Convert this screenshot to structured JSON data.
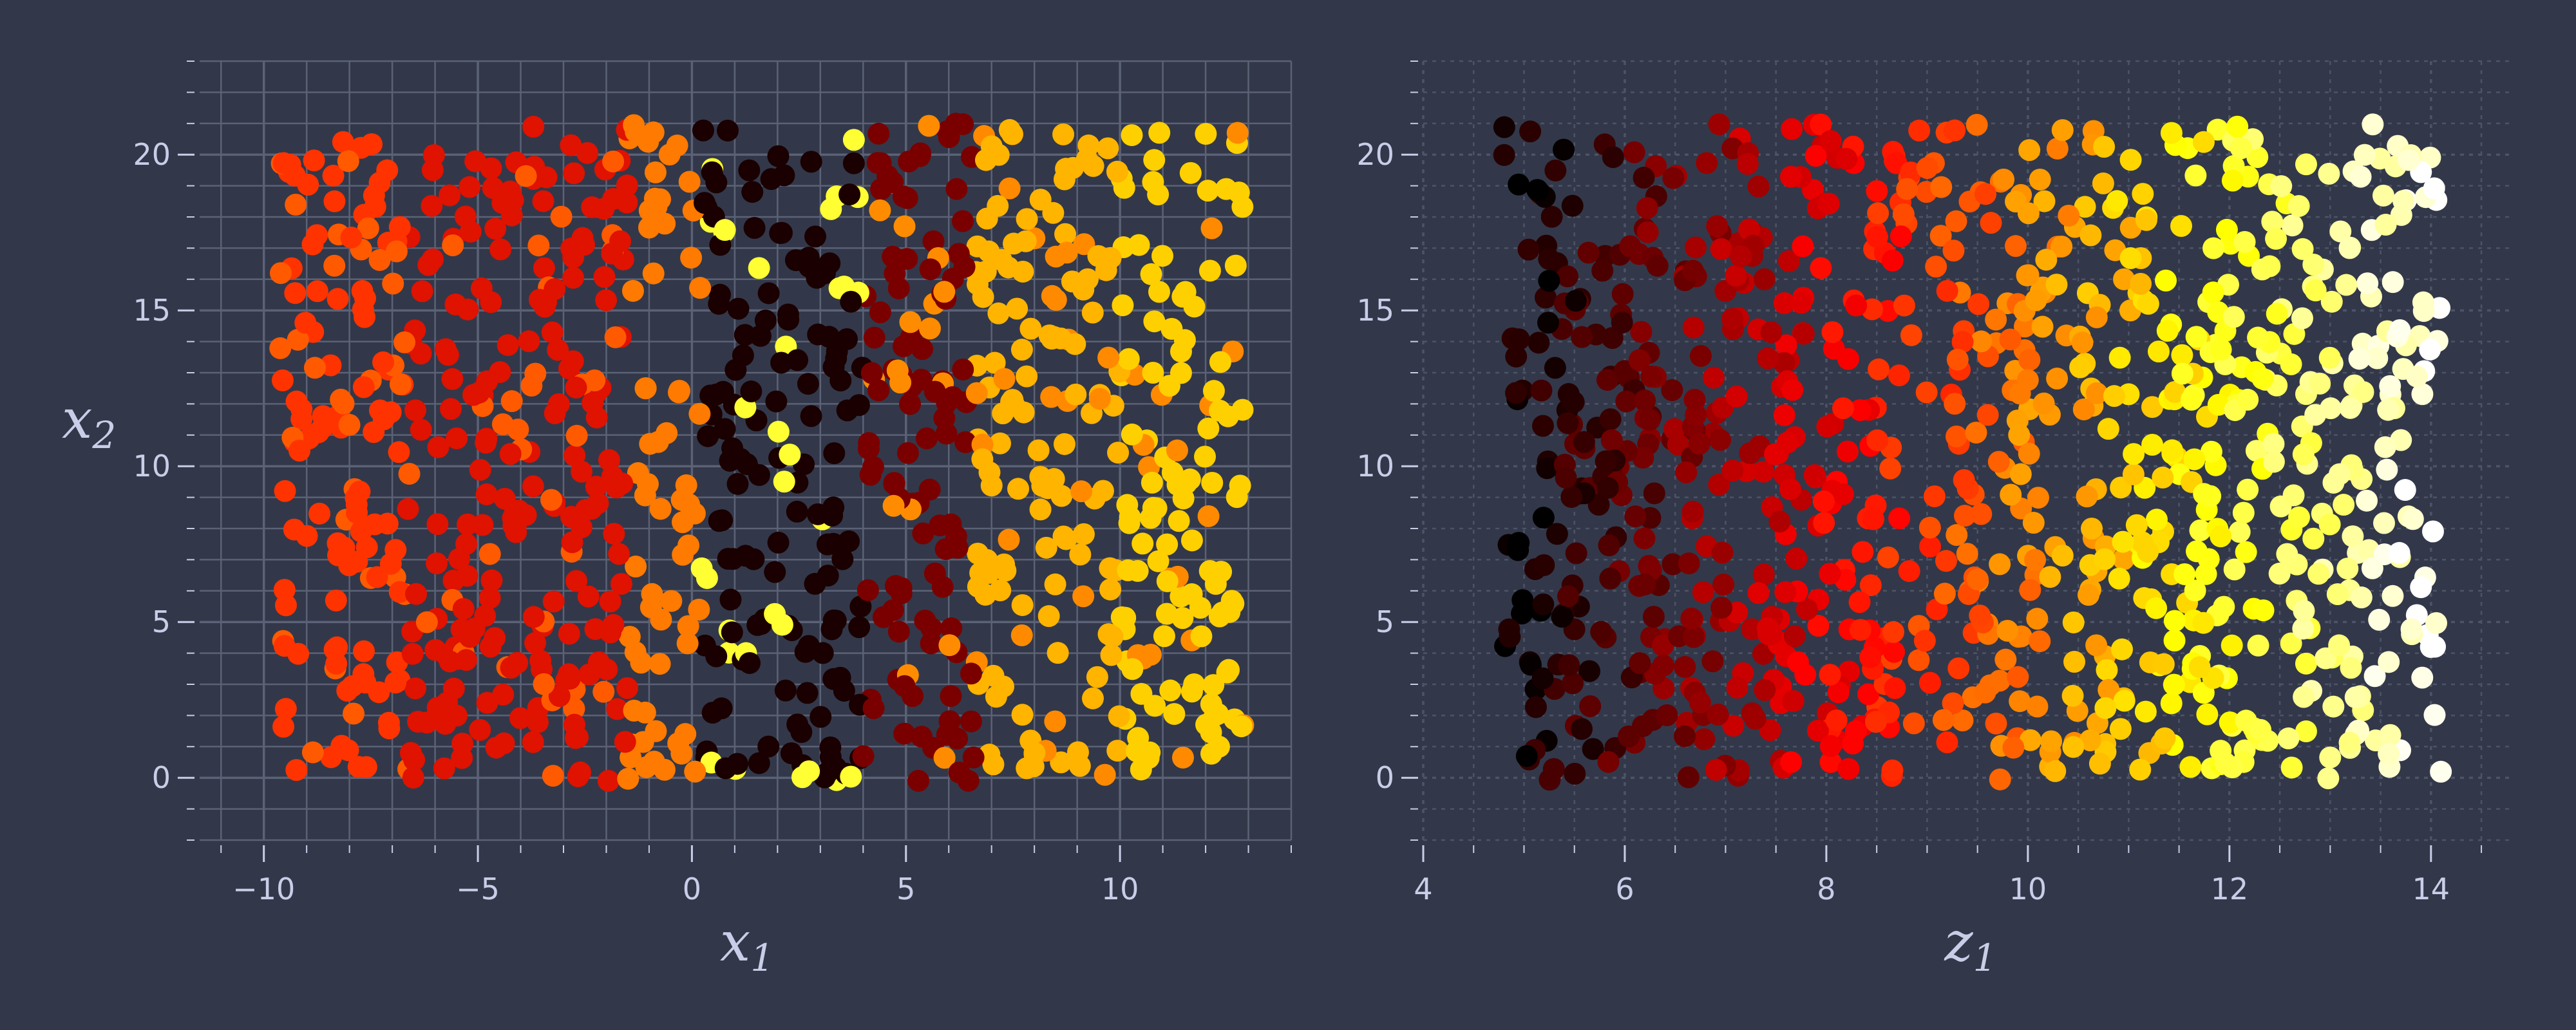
{
  "figure": {
    "background": "#323849",
    "grid_color_left": "#5c6276",
    "grid_color_right": "#4e5467",
    "text_color": "#c9cde8",
    "colormap": "hot"
  },
  "chart_data": [
    {
      "type": "scatter",
      "xlabel": "x",
      "xlabel_sub": "1",
      "ylabel": "x",
      "ylabel_sub": "2",
      "xlim": [
        -11.5,
        14
      ],
      "ylim": [
        -2,
        23
      ],
      "xticks": [
        -10,
        -5,
        0,
        5,
        10
      ],
      "xtick_labels": [
        "−10",
        "−5",
        "0",
        "5",
        "10"
      ],
      "yticks": [
        0,
        5,
        10,
        15,
        20
      ],
      "ytick_labels": [
        "0",
        "5",
        "10",
        "15",
        "20"
      ],
      "grid": "major and minor, solid",
      "color_mapping": "hot colormap indexed by a periodic stripe pattern along x1 (red on the left, dark/black near x1 = 0 to 6, yellow on the right)",
      "points": {
        "n": 1000,
        "x_range": [
          -9.7,
          12.9
        ],
        "y_range": [
          -0.1,
          21.0
        ],
        "color_bands": [
          {
            "x_from": -9.7,
            "x_to": -6.7,
            "color": "#ff3300"
          },
          {
            "x_from": -6.7,
            "x_to": -1.5,
            "color": "#e01200"
          },
          {
            "x_from": -1.5,
            "x_to": 0.2,
            "color": "#ff7a00"
          },
          {
            "x_from": 0.2,
            "x_to": 4.0,
            "color": "#1a0000"
          },
          {
            "x_from": 4.0,
            "x_to": 6.6,
            "color": "#7a0000"
          },
          {
            "x_from": 6.6,
            "x_to": 10.0,
            "color": "#ffb400"
          },
          {
            "x_from": 10.0,
            "x_to": 12.9,
            "color": "#ffd000"
          }
        ]
      }
    },
    {
      "type": "scatter",
      "xlabel": "z",
      "xlabel_sub": "1",
      "ylabel": "",
      "ylabel_sub": "",
      "xlim": [
        4,
        14.8
      ],
      "ylim": [
        -2,
        23
      ],
      "xticks": [
        4,
        6,
        8,
        10,
        12,
        14
      ],
      "xtick_labels": [
        "4",
        "6",
        "8",
        "10",
        "12",
        "14"
      ],
      "yticks": [
        0,
        5,
        10,
        15,
        20
      ],
      "ytick_labels": [
        "0",
        "5",
        "10",
        "15",
        "20"
      ],
      "grid": "major and minor, dotted",
      "color_mapping": "hot colormap increasing with z1 (black at z1 ≈ 4.8, red near 8–9, orange near 11, yellow at z1 ≈ 14)",
      "points": {
        "n": 1000,
        "x_range": [
          4.8,
          14.1
        ],
        "y_range": [
          -0.1,
          21.0
        ]
      }
    }
  ]
}
